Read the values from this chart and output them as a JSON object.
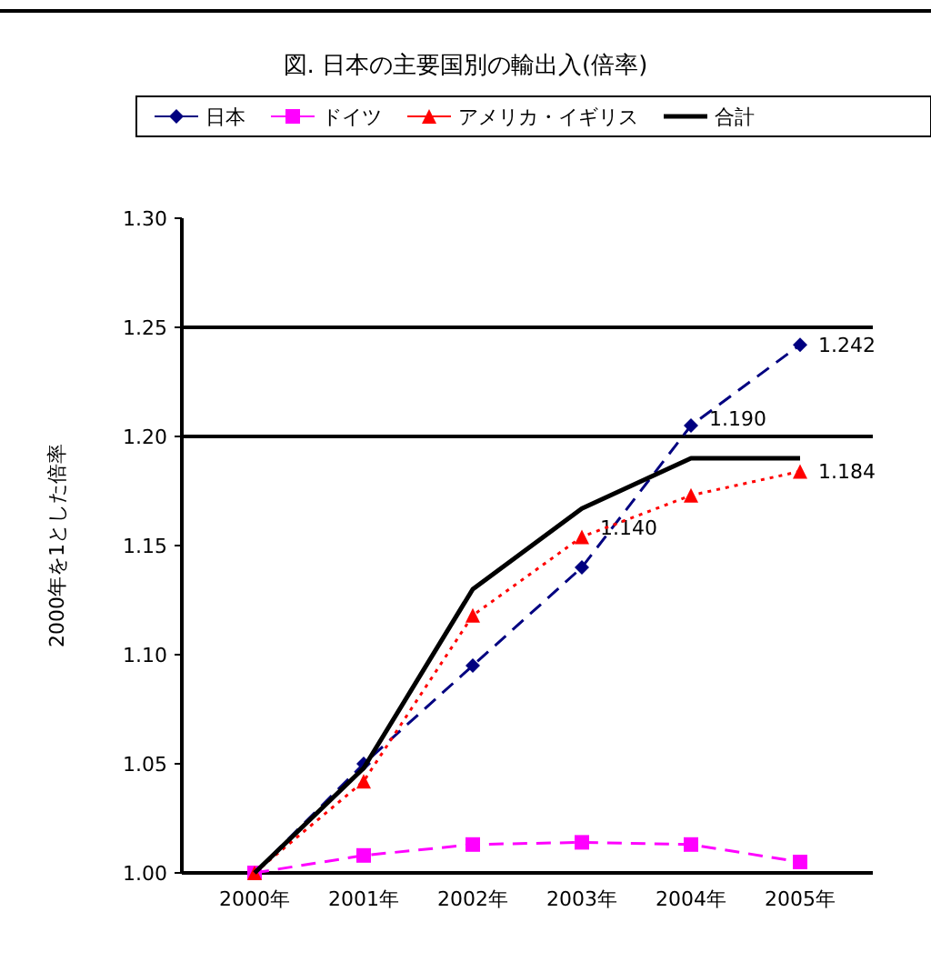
{
  "chart_data": {
    "type": "line",
    "title": "図. 日本の主要国別の輸出入(倍率)",
    "ylabel": "2000年を1とした倍率",
    "categories": [
      "2000年",
      "2001年",
      "2002年",
      "2003年",
      "2004年",
      "2005年"
    ],
    "series": [
      {
        "name": "日本",
        "color": "#000080",
        "marker": "diamond",
        "line_style": "dashed",
        "values": [
          1.0,
          1.05,
          1.095,
          1.14,
          1.205,
          1.242
        ],
        "value_labels": [
          null,
          null,
          null,
          "1.140",
          null,
          "1.242"
        ]
      },
      {
        "name": "ドイツ",
        "color": "#ff00ff",
        "marker": "square",
        "line_style": "dashed",
        "values": [
          1.0,
          1.008,
          1.013,
          1.014,
          1.013,
          1.005
        ]
      },
      {
        "name": "アメリカ・イギリス",
        "color": "#ff0000",
        "marker": "triangle",
        "line_style": "dotted",
        "values": [
          1.0,
          1.042,
          1.118,
          1.154,
          1.173,
          1.184
        ],
        "value_labels": [
          null,
          null,
          null,
          null,
          null,
          "1.184"
        ]
      },
      {
        "name": "合計",
        "color": "#000000",
        "marker": "none",
        "line_style": "solid",
        "values": [
          1.0,
          1.048,
          1.13,
          1.167,
          1.19,
          1.19
        ],
        "value_labels": [
          null,
          null,
          null,
          null,
          "1.190",
          null
        ]
      }
    ],
    "ylim": [
      1.0,
      1.3
    ],
    "yticks": [
      {
        "value": 1.0,
        "label": "1.00"
      },
      1.05,
      {
        "value": 1.1,
        "label": "1.10"
      },
      1.15,
      {
        "value": 1.2,
        "label": "1.20"
      },
      1.25,
      {
        "value": 1.3,
        "label": "1.30"
      }
    ],
    "ref_lines": [
      {
        "axis": "y",
        "value": 1.2,
        "color": "#000000"
      },
      {
        "axis": "y",
        "value": 1.25,
        "color": "#000000"
      }
    ],
    "legend": "top",
    "grid": false
  }
}
